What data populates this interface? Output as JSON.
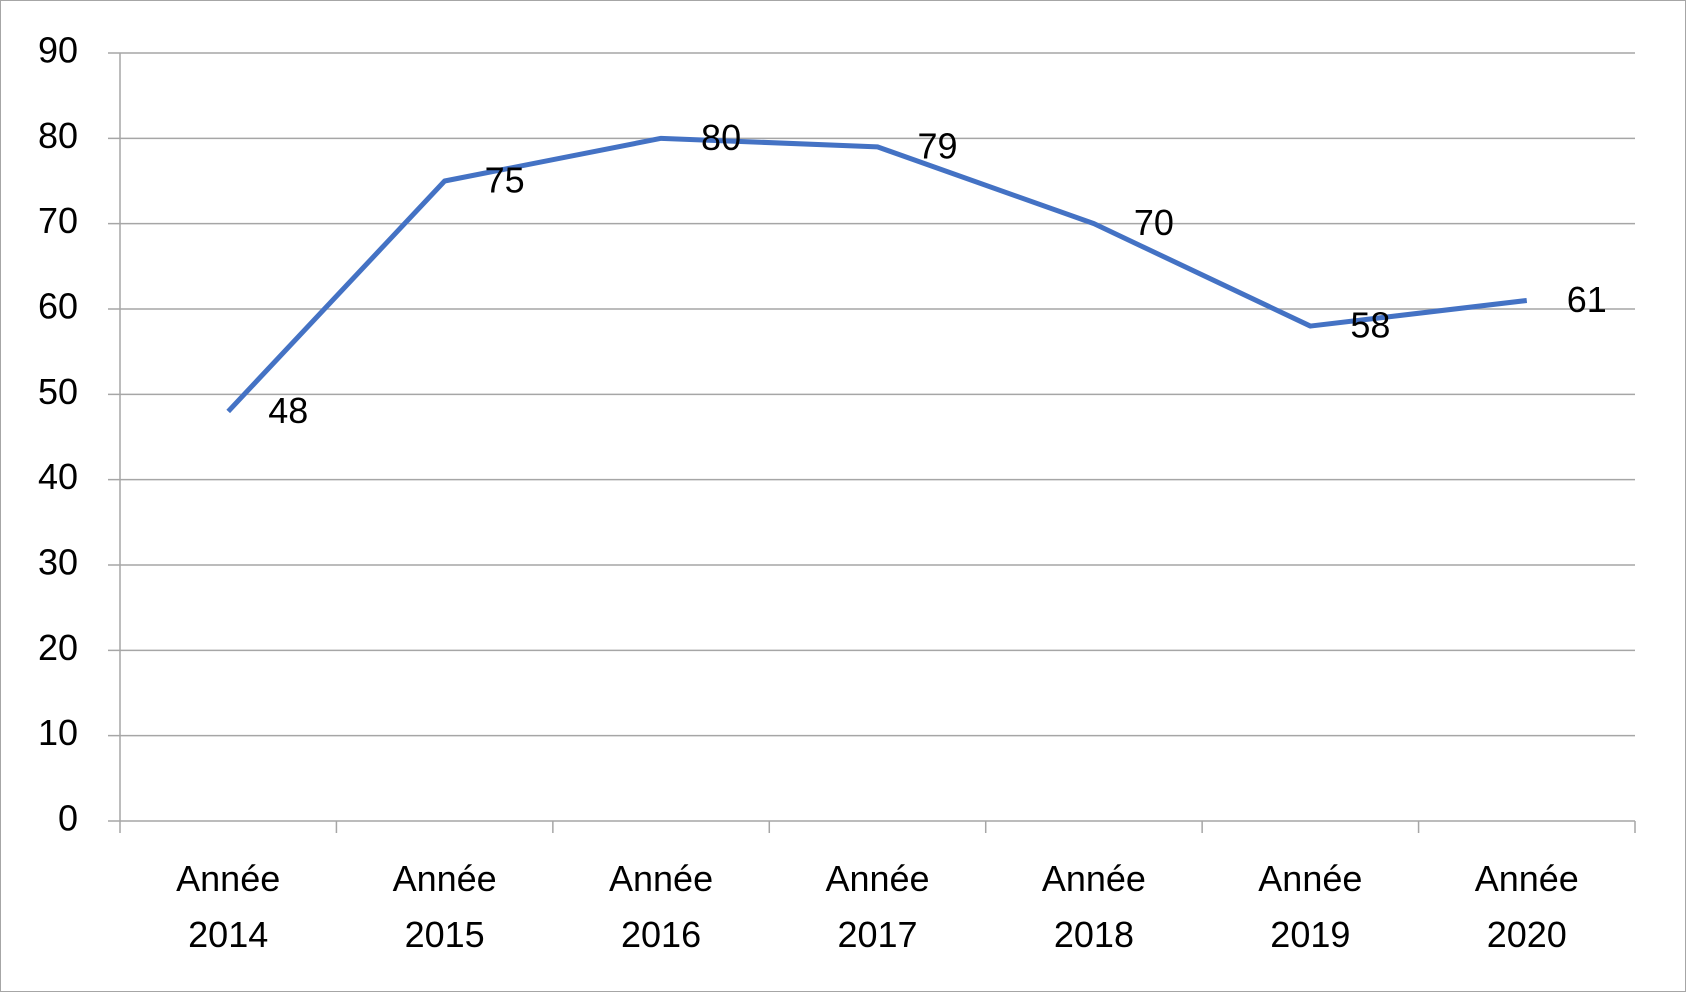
{
  "chart_data": {
    "type": "line",
    "categories": [
      "Année 2014",
      "Année 2015",
      "Année 2016",
      "Année 2017",
      "Année 2018",
      "Année 2019",
      "Année 2020"
    ],
    "series": [
      {
        "color": "#4472c4",
        "values": [
          48,
          75,
          80,
          79,
          70,
          58,
          61
        ]
      }
    ],
    "ylim": [
      0,
      90
    ],
    "yticks": [
      0,
      10,
      20,
      30,
      40,
      50,
      60,
      70,
      80,
      90
    ],
    "grid": true,
    "data_labels": true
  }
}
